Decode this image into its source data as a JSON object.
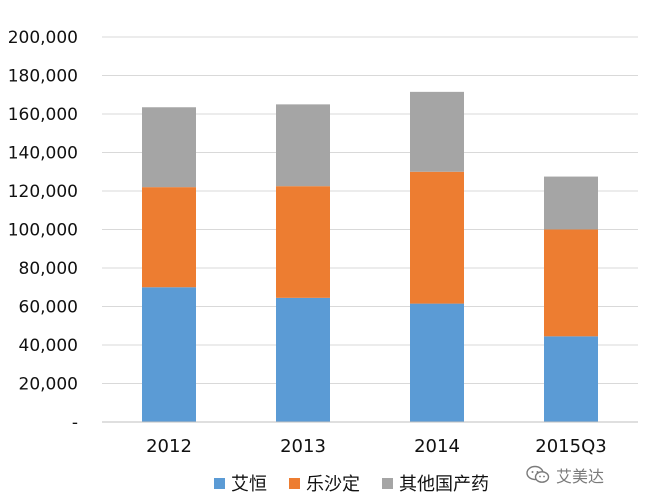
{
  "chart_data": {
    "type": "bar",
    "stacked": true,
    "categories": [
      "2012",
      "2013",
      "2014",
      "2015Q3"
    ],
    "series": [
      {
        "name": "艾恒",
        "color": "#5b9bd5",
        "values": [
          70000,
          64500,
          61500,
          44500
        ]
      },
      {
        "name": "乐沙定",
        "color": "#ed7d31",
        "values": [
          52000,
          58000,
          68500,
          55500
        ]
      },
      {
        "name": "其他国产药",
        "color": "#a5a5a5",
        "values": [
          41500,
          42500,
          41500,
          27500
        ]
      }
    ],
    "ylim": [
      0,
      200000
    ],
    "yticks": [
      "-",
      "20,000",
      "40,000",
      "60,000",
      "80,000",
      "100,000",
      "120,000",
      "140,000",
      "160,000",
      "180,000",
      "200,000"
    ],
    "grid": true,
    "legend_position": "bottom"
  },
  "watermark": {
    "text": "艾美达",
    "icon": "wechat-icon"
  }
}
